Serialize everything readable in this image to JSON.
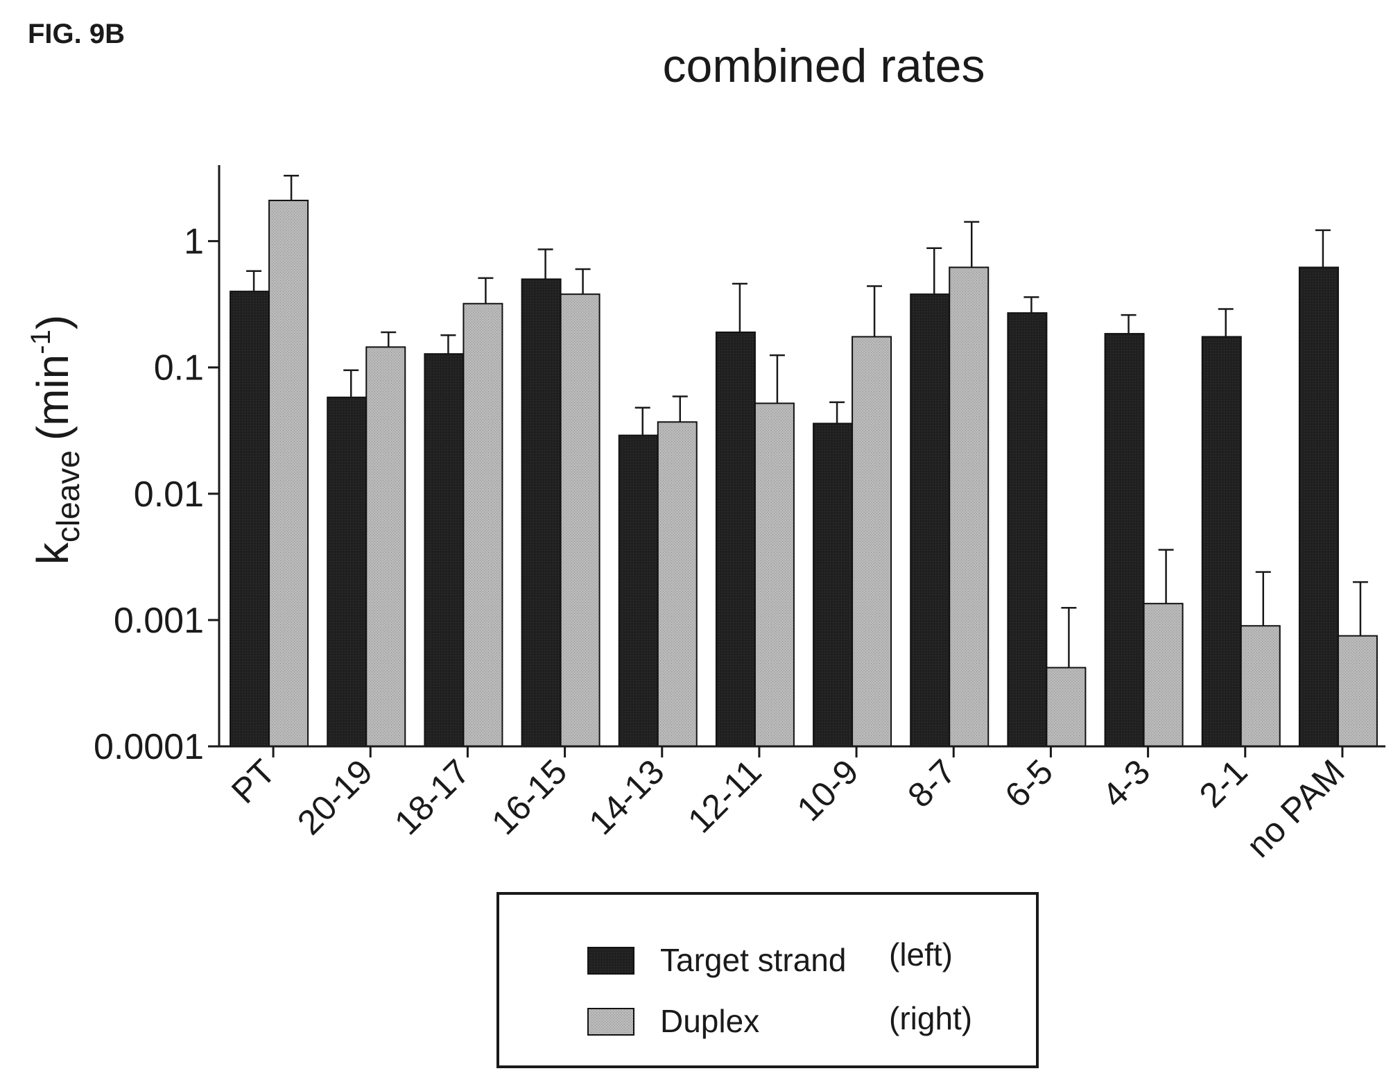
{
  "figure_label": "FIG. 9B",
  "chart_data": {
    "type": "bar",
    "title": "combined rates",
    "ylabel": {
      "main": "k",
      "subscript": "cleave",
      "unit_open": "(min",
      "unit_superscript": "-1",
      "unit_close": ")"
    },
    "xlabel": "",
    "yscale": "log",
    "ylim": [
      0.0001,
      4
    ],
    "yticks": [
      {
        "value": 0.0001,
        "label": "0.0001"
      },
      {
        "value": 0.001,
        "label": "0.001"
      },
      {
        "value": 0.01,
        "label": "0.01"
      },
      {
        "value": 0.1,
        "label": "0.1"
      },
      {
        "value": 1,
        "label": "1"
      }
    ],
    "categories": [
      "PT",
      "20-19",
      "18-17",
      "16-15",
      "14-13",
      "12-11",
      "10-9",
      "8-7",
      "6-5",
      "4-3",
      "2-1",
      "no PAM"
    ],
    "series": [
      {
        "name": "Target strand",
        "position": "(left)",
        "color": "#1f1f1f",
        "values": [
          0.4,
          0.058,
          0.128,
          0.5,
          0.029,
          0.19,
          0.036,
          0.38,
          0.27,
          0.185,
          0.175,
          0.62
        ],
        "errors": [
          0.58,
          0.095,
          0.18,
          0.86,
          0.048,
          0.46,
          0.053,
          0.88,
          0.36,
          0.26,
          0.29,
          1.22
        ]
      },
      {
        "name": "Duplex",
        "position": "(right)",
        "color": "#b5b5b5",
        "values": [
          2.1,
          0.145,
          0.32,
          0.38,
          0.037,
          0.052,
          0.175,
          0.62,
          0.00042,
          0.00135,
          0.0009,
          0.00075
        ],
        "errors": [
          3.3,
          0.19,
          0.51,
          0.6,
          0.059,
          0.125,
          0.44,
          1.42,
          0.00125,
          0.0036,
          0.0024,
          0.002
        ]
      }
    ],
    "legend": "bottom-center"
  }
}
